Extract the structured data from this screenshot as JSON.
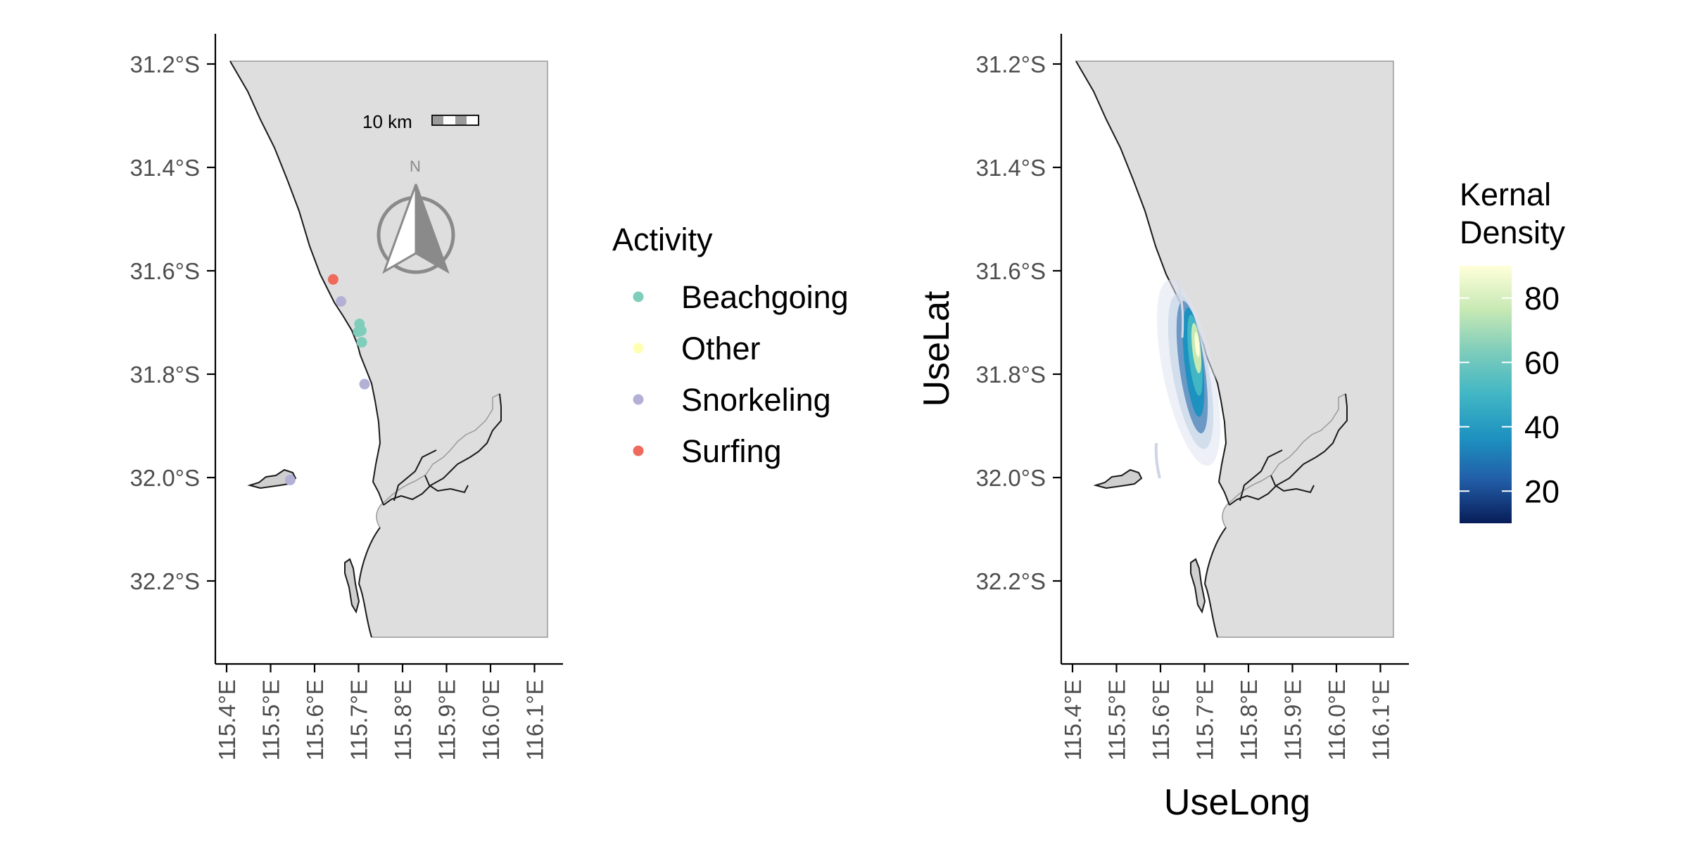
{
  "chart_data": [
    {
      "type": "scatter",
      "panel": "left",
      "xlabel": "",
      "ylabel": "",
      "xlim": [
        115.37,
        116.16
      ],
      "ylim": [
        -32.36,
        -31.1
      ],
      "x_ticks": [
        115.4,
        115.5,
        115.6,
        115.7,
        115.8,
        115.9,
        116.0,
        116.1
      ],
      "y_ticks": [
        -31.2,
        -31.4,
        -31.6,
        -31.8,
        -32.0,
        -32.2
      ],
      "x_tick_labels": [
        "115.4°E",
        "115.5°E",
        "115.6°E",
        "115.7°E",
        "115.8°E",
        "115.9°E",
        "116.0°E",
        "116.1°E"
      ],
      "y_tick_labels": [
        "31.2°S",
        "31.4°S",
        "31.6°S",
        "31.8°S",
        "32.0°S",
        "32.2°S"
      ],
      "grid": false,
      "scale_bar": "10 km",
      "north_arrow": "N",
      "legend": {
        "title": "Activity",
        "placement": "right",
        "items": [
          {
            "label": "Beachgoing",
            "color": "#7fcdbb"
          },
          {
            "label": "Other",
            "color": "#ffffb3"
          },
          {
            "label": "Snorkeling",
            "color": "#b3b0d6"
          },
          {
            "label": "Surfing",
            "color": "#ef6a5c"
          }
        ]
      },
      "series": [
        {
          "name": "Beachgoing",
          "color": "#7fcdbb",
          "points": [
            [
              115.693,
              -31.695
            ],
            [
              115.69,
              -31.71
            ],
            [
              115.697,
              -31.708
            ],
            [
              115.698,
              -31.73
            ]
          ]
        },
        {
          "name": "Other",
          "color": "#ffffb3",
          "points": []
        },
        {
          "name": "Snorkeling",
          "color": "#b3b0d6",
          "points": [
            [
              115.653,
              -31.652
            ],
            [
              115.704,
              -31.81
            ],
            [
              115.543,
              -31.993
            ]
          ]
        },
        {
          "name": "Surfing",
          "color": "#ef6a5c",
          "points": [
            [
              115.636,
              -31.61
            ]
          ]
        }
      ]
    },
    {
      "type": "heatmap",
      "panel": "right",
      "xlabel": "UseLong",
      "ylabel": "UseLat",
      "xlim": [
        115.37,
        116.16
      ],
      "ylim": [
        -32.36,
        -31.1
      ],
      "x_ticks": [
        115.4,
        115.5,
        115.6,
        115.7,
        115.8,
        115.9,
        116.0,
        116.1
      ],
      "y_ticks": [
        -31.2,
        -31.4,
        -31.6,
        -31.8,
        -32.0,
        -32.2
      ],
      "x_tick_labels": [
        "115.4°E",
        "115.5°E",
        "115.6°E",
        "115.7°E",
        "115.8°E",
        "115.9°E",
        "116.0°E",
        "116.1°E"
      ],
      "y_tick_labels": [
        "31.2°S",
        "31.4°S",
        "31.6°S",
        "31.8°S",
        "32.0°S",
        "32.2°S"
      ],
      "grid": false,
      "colorbar": {
        "title_lines": [
          "Kernal",
          "Density"
        ],
        "min": 10,
        "max": 90,
        "ticks": [
          20,
          40,
          60,
          80
        ],
        "tick_labels": [
          "80",
          "60",
          "40",
          "20"
        ],
        "colors": [
          "#081d58",
          "#225ea8",
          "#1d91c0",
          "#41b6c4",
          "#7fcdbb",
          "#c7e9b4",
          "#ffffd9"
        ]
      },
      "density_peak": {
        "x": 115.69,
        "y": -31.75,
        "value": 90
      }
    }
  ],
  "map": {
    "land_color": "#dedede",
    "coast_color": "#1a1a1a",
    "frame_color": "#9a9a9a"
  }
}
